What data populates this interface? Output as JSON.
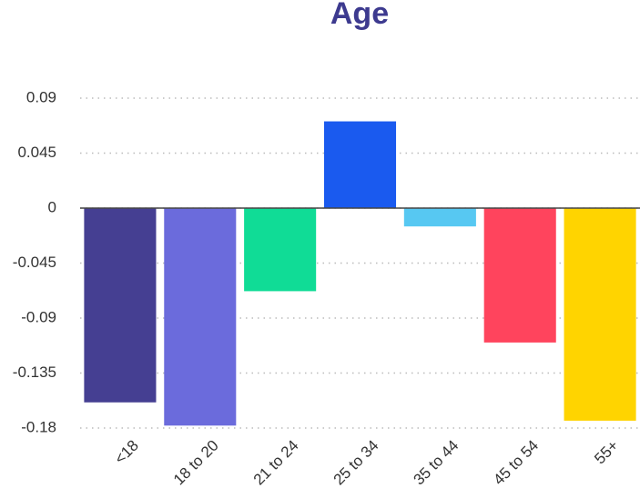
{
  "chart_data": {
    "type": "bar",
    "title": "Age",
    "categories": [
      "<18",
      "18 to 20",
      "21 to 24",
      "25 to 34",
      "35 to 44",
      "45 to 54",
      "55+"
    ],
    "values": [
      -0.159,
      -0.178,
      -0.068,
      0.071,
      -0.015,
      -0.11,
      -0.174
    ],
    "colors": [
      "#453f92",
      "#6b6bdc",
      "#10dc96",
      "#1a5aef",
      "#57c8f2",
      "#ff445d",
      "#ffd400"
    ],
    "ylim": [
      -0.18,
      0.09
    ],
    "yticks": [
      0.09,
      0.045,
      0,
      -0.045,
      -0.09,
      -0.135,
      -0.18
    ],
    "grid": true
  }
}
